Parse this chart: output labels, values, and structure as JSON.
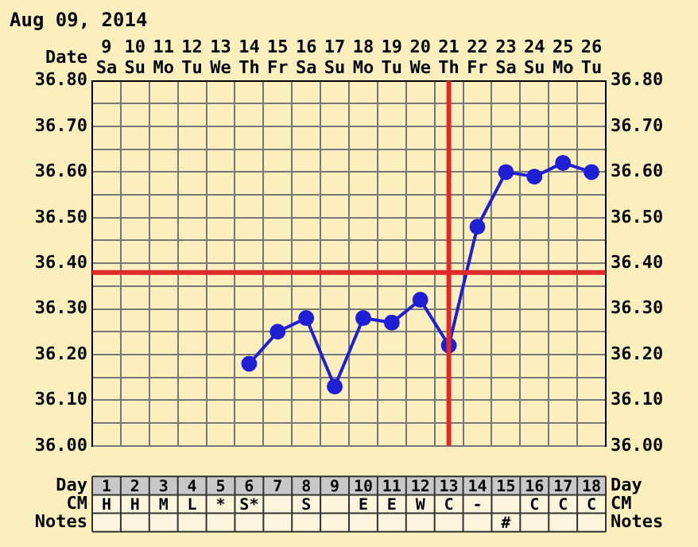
{
  "chart_data": [
    {
      "type": "line",
      "title": "Aug 09, 2014",
      "categories": [
        "9 Sa",
        "10 Su",
        "11 Mo",
        "12 Tu",
        "13 We",
        "14 Th",
        "15 Fr",
        "16 Sa",
        "17 Su",
        "18 Mo",
        "19 Tu",
        "20 We",
        "21 Th",
        "22 Fr",
        "23 Sa",
        "24 Su",
        "25 Mo",
        "26 Tu"
      ],
      "series": [
        {
          "color": "#1f1fd6",
          "values": [
            null,
            null,
            null,
            null,
            null,
            36.18,
            36.25,
            36.28,
            36.13,
            36.28,
            36.27,
            36.32,
            36.22,
            36.48,
            36.6,
            36.59,
            36.62,
            36.6
          ]
        }
      ],
      "ylim": [
        36.0,
        36.8
      ],
      "yticks": [
        {
          "value": 36.0,
          "label": "36.00"
        },
        {
          "value": 36.05,
          "label": null
        },
        {
          "value": 36.1,
          "label": "36.10"
        },
        {
          "value": 36.15,
          "label": null
        },
        {
          "value": 36.2,
          "label": "36.20"
        },
        {
          "value": 36.25,
          "label": null
        },
        {
          "value": 36.3,
          "label": "36.30"
        },
        {
          "value": 36.35,
          "label": null
        },
        {
          "value": 36.4,
          "label": "36.40"
        },
        {
          "value": 36.45,
          "label": null
        },
        {
          "value": 36.5,
          "label": "36.50"
        },
        {
          "value": 36.55,
          "label": null
        },
        {
          "value": 36.6,
          "label": "36.60"
        },
        {
          "value": 36.65,
          "label": null
        },
        {
          "value": 36.7,
          "label": "36.70"
        },
        {
          "value": 36.75,
          "label": null
        },
        {
          "value": 36.8,
          "label": "36.80"
        }
      ],
      "y2lim": [
        36.0,
        36.8
      ],
      "y2ticks": [
        {
          "value": 36.0,
          "label": "36.00"
        },
        {
          "value": 36.05,
          "label": null
        },
        {
          "value": 36.1,
          "label": "36.10"
        },
        {
          "value": 36.15,
          "label": null
        },
        {
          "value": 36.2,
          "label": "36.20"
        },
        {
          "value": 36.25,
          "label": null
        },
        {
          "value": 36.3,
          "label": "36.30"
        },
        {
          "value": 36.35,
          "label": null
        },
        {
          "value": 36.4,
          "label": "36.40"
        },
        {
          "value": 36.45,
          "label": null
        },
        {
          "value": 36.5,
          "label": "36.50"
        },
        {
          "value": 36.55,
          "label": null
        },
        {
          "value": 36.6,
          "label": "36.60"
        },
        {
          "value": 36.65,
          "label": null
        },
        {
          "value": 36.7,
          "label": "36.70"
        },
        {
          "value": 36.75,
          "label": null
        },
        {
          "value": 36.8,
          "label": "36.80"
        }
      ],
      "ref_lines": [
        {
          "axis": "y",
          "value": 36.38,
          "color": "#e02a2a"
        },
        {
          "axis": "x",
          "value": "21 Th",
          "color": "#e02a2a"
        }
      ],
      "grid": true,
      "marker": "circle",
      "line_style": "solid",
      "annotations": [
        "Date"
      ]
    },
    {
      "type": "heatmap",
      "categories": [
        null,
        null,
        null,
        null,
        null,
        null,
        null,
        null,
        null,
        null,
        null,
        null,
        null,
        null,
        null,
        null,
        null,
        null
      ],
      "y_categories": [
        "Day",
        "CM",
        "Notes"
      ],
      "y2_categories": [
        "Day",
        "CM",
        "Notes"
      ],
      "cells": [
        [
          null,
          null,
          null,
          null,
          null,
          null,
          null,
          null,
          null,
          null,
          null,
          null,
          null,
          null,
          null,
          null,
          null,
          null
        ],
        [
          null,
          null,
          null,
          null,
          null,
          null,
          null,
          null,
          null,
          null,
          null,
          null,
          null,
          null,
          null,
          null,
          null,
          null
        ],
        [
          null,
          null,
          null,
          null,
          null,
          null,
          null,
          null,
          null,
          null,
          null,
          null,
          null,
          null,
          null,
          null,
          null,
          null
        ]
      ],
      "cell_labels": [
        [
          "1",
          "2",
          "3",
          "4",
          "5",
          "6",
          "7",
          "8",
          "9",
          "10",
          "11",
          "12",
          "13",
          "14",
          "15",
          "16",
          "17",
          "18"
        ],
        [
          "H",
          "H",
          "M",
          "L",
          "*",
          "S*",
          null,
          "S",
          null,
          "E",
          "E",
          "W",
          "C",
          "-",
          null,
          "C",
          "C",
          "C"
        ],
        [
          null,
          null,
          null,
          null,
          null,
          null,
          null,
          null,
          null,
          null,
          null,
          null,
          null,
          null,
          "#",
          null,
          null,
          null
        ]
      ]
    }
  ]
}
